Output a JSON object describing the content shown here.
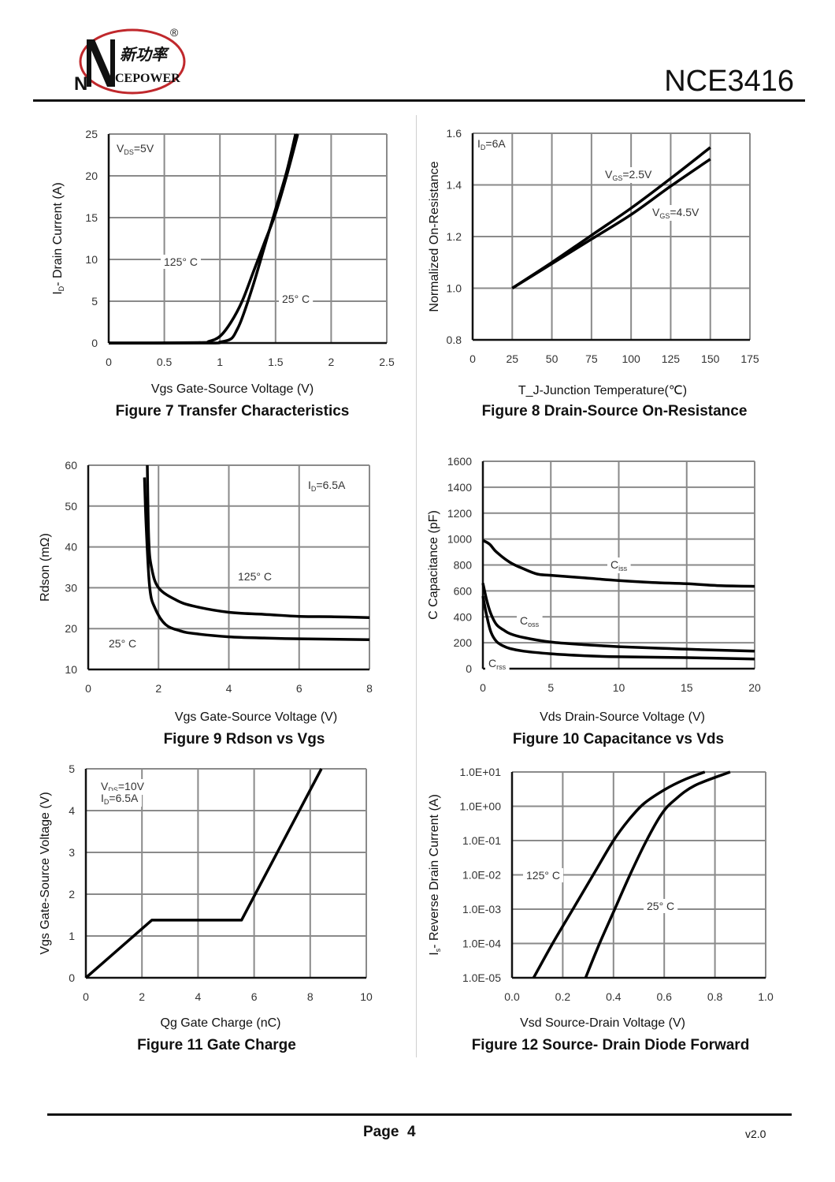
{
  "header": {
    "brand_cn": "新功率",
    "brand_en": "CEPOWER",
    "brand_initial": "N",
    "registered": "®",
    "part_number": "NCE3416"
  },
  "footer": {
    "page_label": "Page  4",
    "version": "v2.0"
  },
  "chart_data": [
    {
      "id": "fig7",
      "type": "line",
      "title": "Figure 7 Transfer Characteristics",
      "xlabel": "Vgs Gate-Source Voltage (V)",
      "ylabel": "I_D- Drain Current (A)",
      "xlim": [
        0,
        2.5
      ],
      "ylim": [
        0,
        25
      ],
      "xticks": [
        "0",
        "0.5",
        "1",
        "1.5",
        "2",
        "2.5"
      ],
      "yticks": [
        "0",
        "5",
        "10",
        "15",
        "20",
        "25"
      ],
      "grid": true,
      "annotations": [
        "V_DS=5V",
        "125° C",
        "25° C"
      ],
      "series": [
        {
          "name": "125° C",
          "x": [
            0,
            0.8,
            0.9,
            1.0,
            1.1,
            1.2,
            1.3,
            1.4,
            1.5,
            1.6,
            1.7
          ],
          "y": [
            0,
            0.05,
            0.2,
            0.8,
            2.5,
            5,
            8.5,
            12,
            15.5,
            20,
            25
          ]
        },
        {
          "name": "25° C",
          "x": [
            0,
            0.9,
            1.0,
            1.1,
            1.15,
            1.2,
            1.3,
            1.4,
            1.5,
            1.6,
            1.68
          ],
          "y": [
            0,
            0,
            0.1,
            0.5,
            1.5,
            3,
            7,
            11.5,
            16,
            20.5,
            25
          ]
        }
      ]
    },
    {
      "id": "fig8",
      "type": "line",
      "title": "Figure 8 Drain-Source On-Resistance",
      "xlabel": "T_J-Junction Temperature(℃)",
      "ylabel": "Normalized On-Resistance",
      "xlim": [
        0,
        175
      ],
      "ylim": [
        0.8,
        1.6
      ],
      "xticks": [
        "0",
        "25",
        "50",
        "75",
        "100",
        "125",
        "150",
        "175"
      ],
      "yticks": [
        "0.8",
        "1.0",
        "1.2",
        "1.4",
        "1.6"
      ],
      "grid": true,
      "annotations": [
        "I_D=6A",
        "V_GS=2.5V",
        "V_GS=4.5V"
      ],
      "series": [
        {
          "name": "V_GS=2.5V",
          "x": [
            25,
            50,
            75,
            100,
            125,
            150
          ],
          "y": [
            1.0,
            1.1,
            1.205,
            1.31,
            1.425,
            1.545
          ]
        },
        {
          "name": "V_GS=4.5V",
          "x": [
            25,
            50,
            75,
            100,
            125,
            150
          ],
          "y": [
            1.0,
            1.095,
            1.19,
            1.285,
            1.395,
            1.5
          ]
        }
      ]
    },
    {
      "id": "fig9",
      "type": "line",
      "title": "Figure 9 Rdson vs Vgs",
      "xlabel": "Vgs Gate-Source Voltage (V)",
      "ylabel": "Rdson (mΩ)",
      "xlim": [
        0,
        8
      ],
      "ylim": [
        10,
        60
      ],
      "xticks": [
        "0",
        "2",
        "4",
        "6",
        "8"
      ],
      "yticks": [
        "10",
        "20",
        "30",
        "40",
        "50",
        "60"
      ],
      "grid": true,
      "annotations": [
        "I_D=6.5A",
        "125° C",
        "25° C"
      ],
      "series": [
        {
          "name": "125° C",
          "x": [
            1.68,
            1.72,
            1.8,
            2.0,
            2.5,
            3,
            4,
            5,
            6,
            7,
            8
          ],
          "y": [
            60,
            42,
            35,
            30,
            27,
            25.5,
            24,
            23.5,
            23,
            22.9,
            22.7
          ]
        },
        {
          "name": "25° C",
          "x": [
            1.6,
            1.65,
            1.75,
            1.9,
            2.2,
            2.6,
            3,
            4,
            5,
            6,
            8
          ],
          "y": [
            57,
            45,
            30,
            25,
            21,
            19.5,
            18.8,
            18,
            17.7,
            17.5,
            17.3
          ]
        }
      ]
    },
    {
      "id": "fig10",
      "type": "line",
      "title": "Figure 10 Capacitance vs Vds",
      "xlabel": "Vds Drain-Source Voltage (V)",
      "ylabel": "C Capacitance (pF)",
      "xlim": [
        0,
        20
      ],
      "ylim": [
        0,
        1600
      ],
      "xticks": [
        "0",
        "5",
        "10",
        "15",
        "20"
      ],
      "yticks": [
        "0",
        "200",
        "400",
        "600",
        "800",
        "1000",
        "1200",
        "1400",
        "1600"
      ],
      "grid": true,
      "annotations": [
        "C_iss",
        "C_oss",
        "C_rss"
      ],
      "series": [
        {
          "name": "C_iss",
          "x": [
            0,
            0.5,
            1,
            2,
            3,
            4,
            5,
            7.5,
            10,
            12.5,
            15,
            17.5,
            20
          ],
          "y": [
            990,
            960,
            900,
            820,
            770,
            730,
            720,
            700,
            680,
            665,
            655,
            640,
            635
          ]
        },
        {
          "name": "C_oss",
          "x": [
            0,
            0.3,
            0.6,
            1,
            1.5,
            2,
            3,
            5,
            7.5,
            10,
            12.5,
            15,
            20
          ],
          "y": [
            660,
            520,
            420,
            340,
            300,
            270,
            240,
            205,
            185,
            170,
            160,
            150,
            135
          ]
        },
        {
          "name": "C_rss",
          "x": [
            0,
            0.3,
            0.6,
            1,
            1.5,
            2,
            3,
            5,
            7.5,
            10,
            15,
            20
          ],
          "y": [
            560,
            400,
            280,
            210,
            175,
            155,
            135,
            115,
            100,
            92,
            85,
            75
          ]
        }
      ]
    },
    {
      "id": "fig11",
      "type": "line",
      "title": "Figure 11 Gate Charge",
      "xlabel": "Qg Gate Charge (nC)",
      "ylabel": "Vgs Gate-Source Voltage (V)",
      "xlim": [
        0,
        10
      ],
      "ylim": [
        0,
        5
      ],
      "xticks": [
        "0",
        "2",
        "4",
        "6",
        "8",
        "10"
      ],
      "yticks": [
        "0",
        "1",
        "2",
        "3",
        "4",
        "5"
      ],
      "grid": true,
      "annotations": [
        "V_DS=10V",
        "I_D=6.5A"
      ],
      "series": [
        {
          "name": "Vgs",
          "x": [
            0,
            2.35,
            5.55,
            8.4
          ],
          "y": [
            0,
            1.38,
            1.38,
            5
          ]
        }
      ]
    },
    {
      "id": "fig12",
      "type": "line",
      "title": "Figure 12 Source- Drain Diode Forward",
      "xlabel": "Vsd Source-Drain Voltage (V)",
      "ylabel": "I_s- Reverse Drain Current (A)",
      "yscale": "log",
      "xlim": [
        0.0,
        1.0
      ],
      "ylim": [
        1e-05,
        10
      ],
      "xticks": [
        "0.0",
        "0.2",
        "0.4",
        "0.6",
        "0.8",
        "1.0"
      ],
      "yticks": [
        "1.0E-05",
        "1.0E-04",
        "1.0E-03",
        "1.0E-02",
        "1.0E-01",
        "1.0E+00",
        "1.0E+01"
      ],
      "grid": true,
      "annotations": [
        "125° C",
        "25° C"
      ],
      "series": [
        {
          "name": "125° C",
          "x": [
            0.085,
            0.16,
            0.24,
            0.32,
            0.4,
            0.46,
            0.52,
            0.6,
            0.68,
            0.76
          ],
          "y": [
            1e-05,
            0.0001,
            0.001,
            0.01,
            0.1,
            0.4,
            1.2,
            3,
            6,
            10
          ]
        },
        {
          "name": "25° C",
          "x": [
            0.29,
            0.345,
            0.405,
            0.465,
            0.53,
            0.59,
            0.64,
            0.72,
            0.86
          ],
          "y": [
            1e-05,
            0.0001,
            0.001,
            0.01,
            0.1,
            0.6,
            1.5,
            4,
            10
          ]
        }
      ]
    }
  ]
}
